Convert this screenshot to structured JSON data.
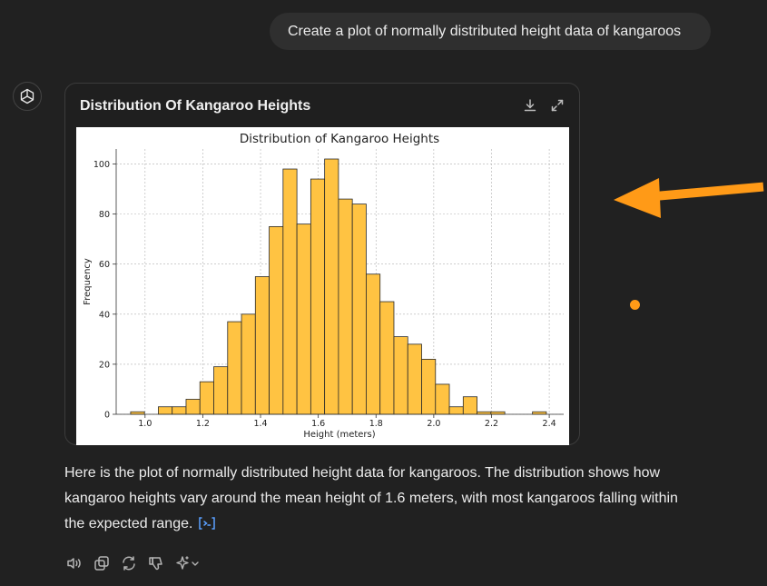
{
  "user_message": {
    "text": "Create a plot of normally distributed height data of kangaroos"
  },
  "card": {
    "title": "Distribution Of Kangaroo Heights",
    "download_icon": "download-icon",
    "expand_icon": "expand-icon"
  },
  "chart_data": {
    "type": "bar",
    "title": "Distribution of Kangaroo Heights",
    "xlabel": "Height (meters)",
    "ylabel": "Frequency",
    "xlim": [
      0.9,
      2.45
    ],
    "ylim": [
      0,
      106
    ],
    "x_ticks": [
      1.0,
      1.2,
      1.4,
      1.6,
      1.8,
      2.0,
      2.2,
      2.4
    ],
    "x_tick_labels": [
      "1.0",
      "1.2",
      "1.4",
      "1.6",
      "1.8",
      "2.0",
      "2.2",
      "2.4"
    ],
    "y_ticks": [
      0,
      20,
      40,
      60,
      80,
      100
    ],
    "y_tick_labels": [
      "0",
      "20",
      "40",
      "60",
      "80",
      "100"
    ],
    "grid": true,
    "bar_color": "#ffc342",
    "bins": [
      {
        "x0": 0.95,
        "x1": 0.998,
        "count": 1
      },
      {
        "x0": 0.998,
        "x1": 1.046,
        "count": 0
      },
      {
        "x0": 1.046,
        "x1": 1.094,
        "count": 3
      },
      {
        "x0": 1.094,
        "x1": 1.142,
        "count": 3
      },
      {
        "x0": 1.142,
        "x1": 1.19,
        "count": 6
      },
      {
        "x0": 1.19,
        "x1": 1.238,
        "count": 13
      },
      {
        "x0": 1.238,
        "x1": 1.286,
        "count": 19
      },
      {
        "x0": 1.286,
        "x1": 1.334,
        "count": 37
      },
      {
        "x0": 1.334,
        "x1": 1.382,
        "count": 40
      },
      {
        "x0": 1.382,
        "x1": 1.43,
        "count": 55
      },
      {
        "x0": 1.43,
        "x1": 1.478,
        "count": 75
      },
      {
        "x0": 1.478,
        "x1": 1.526,
        "count": 98
      },
      {
        "x0": 1.526,
        "x1": 1.574,
        "count": 76
      },
      {
        "x0": 1.574,
        "x1": 1.622,
        "count": 94
      },
      {
        "x0": 1.622,
        "x1": 1.67,
        "count": 102
      },
      {
        "x0": 1.67,
        "x1": 1.718,
        "count": 86
      },
      {
        "x0": 1.718,
        "x1": 1.766,
        "count": 84
      },
      {
        "x0": 1.766,
        "x1": 1.814,
        "count": 56
      },
      {
        "x0": 1.814,
        "x1": 1.862,
        "count": 45
      },
      {
        "x0": 1.862,
        "x1": 1.91,
        "count": 31
      },
      {
        "x0": 1.91,
        "x1": 1.958,
        "count": 28
      },
      {
        "x0": 1.958,
        "x1": 2.006,
        "count": 22
      },
      {
        "x0": 2.006,
        "x1": 2.054,
        "count": 12
      },
      {
        "x0": 2.054,
        "x1": 2.102,
        "count": 3
      },
      {
        "x0": 2.102,
        "x1": 2.15,
        "count": 7
      },
      {
        "x0": 2.15,
        "x1": 2.198,
        "count": 1
      },
      {
        "x0": 2.198,
        "x1": 2.246,
        "count": 1
      },
      {
        "x0": 2.246,
        "x1": 2.294,
        "count": 0
      },
      {
        "x0": 2.294,
        "x1": 2.342,
        "count": 0
      },
      {
        "x0": 2.342,
        "x1": 2.39,
        "count": 1
      }
    ]
  },
  "message": {
    "text": "Here is the plot of normally distributed height data for kangaroos. The distribution shows how kangaroo heights vary around the mean height of 1.6 meters, with most kangaroos falling within the expected range.",
    "citation_icon": "code-citation-icon"
  },
  "actions": [
    {
      "icon": "read-aloud-icon"
    },
    {
      "icon": "copy-icon"
    },
    {
      "icon": "regenerate-icon"
    },
    {
      "icon": "thumbs-down-icon"
    },
    {
      "icon": "sparkle-model-icon"
    }
  ],
  "annotation": {
    "arrow_color": "#ff9a17"
  }
}
